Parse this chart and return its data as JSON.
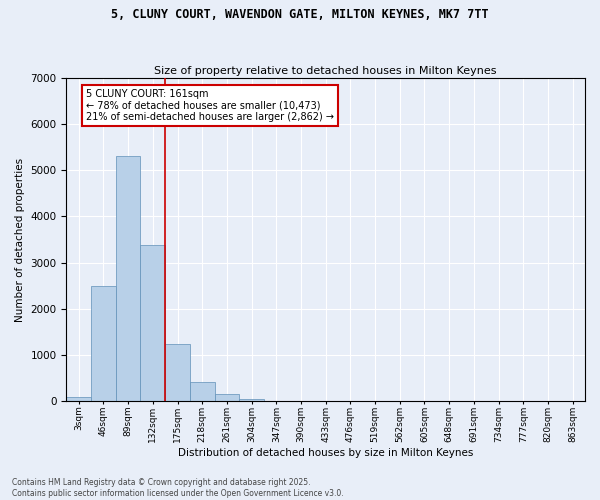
{
  "title_line1": "5, CLUNY COURT, WAVENDON GATE, MILTON KEYNES, MK7 7TT",
  "title_line2": "Size of property relative to detached houses in Milton Keynes",
  "xlabel": "Distribution of detached houses by size in Milton Keynes",
  "ylabel": "Number of detached properties",
  "categories": [
    "3sqm",
    "46sqm",
    "89sqm",
    "132sqm",
    "175sqm",
    "218sqm",
    "261sqm",
    "304sqm",
    "347sqm",
    "390sqm",
    "433sqm",
    "476sqm",
    "519sqm",
    "562sqm",
    "605sqm",
    "648sqm",
    "691sqm",
    "734sqm",
    "777sqm",
    "820sqm",
    "863sqm"
  ],
  "bar_values": [
    100,
    2500,
    5300,
    3380,
    1250,
    430,
    170,
    60,
    10,
    0,
    0,
    0,
    0,
    0,
    0,
    0,
    0,
    0,
    0,
    0,
    0
  ],
  "bar_color": "#b8d0e8",
  "bar_edge_color": "#6090b8",
  "vline_color": "#cc0000",
  "annotation_title": "5 CLUNY COURT: 161sqm",
  "annotation_line1": "← 78% of detached houses are smaller (10,473)",
  "annotation_line2": "21% of semi-detached houses are larger (2,862) →",
  "ylim": [
    0,
    7000
  ],
  "yticks": [
    0,
    1000,
    2000,
    3000,
    4000,
    5000,
    6000,
    7000
  ],
  "footer_line1": "Contains HM Land Registry data © Crown copyright and database right 2025.",
  "footer_line2": "Contains public sector information licensed under the Open Government Licence v3.0.",
  "bg_color": "#e8eef8",
  "plot_bg_color": "#e8eef8",
  "title1_fontsize": 8.5,
  "title2_fontsize": 8.0,
  "vline_position": 3.5
}
